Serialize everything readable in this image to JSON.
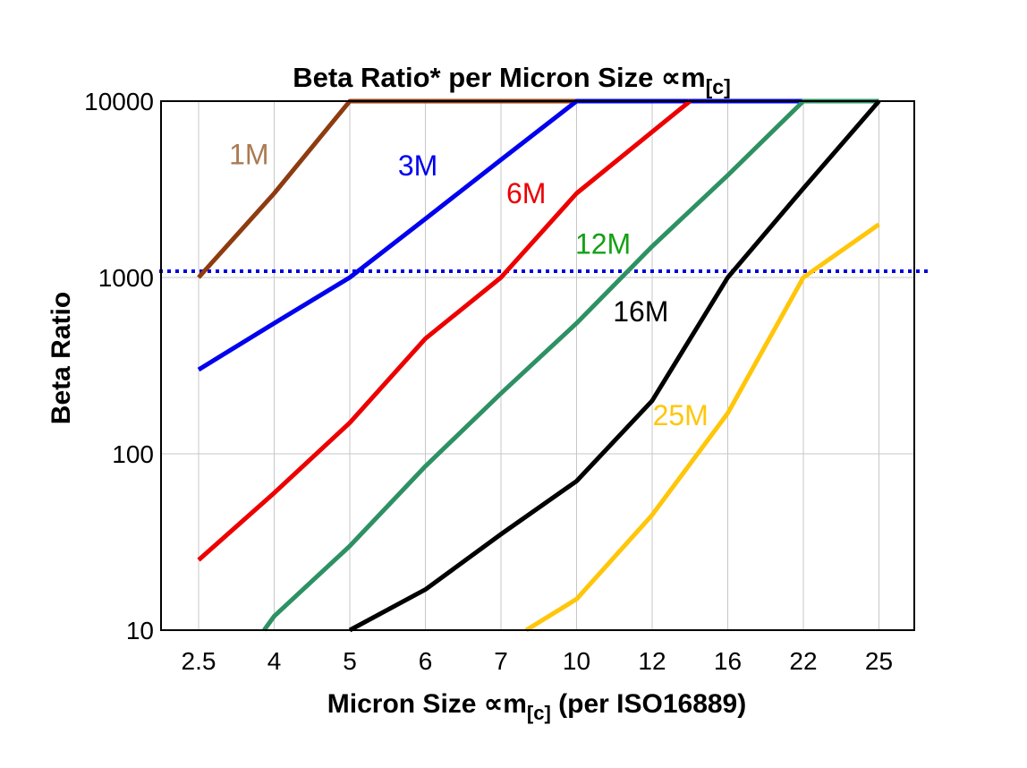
{
  "chart_data": {
    "type": "line",
    "title": "Beta Ratio* per Micron Size ∝m[c]",
    "title_parts": {
      "main": "Beta Ratio* per Micron Size ∝m",
      "sub": "[c]"
    },
    "xlabel": "Micron Size ∝m[c] (per ISO16889)",
    "xlabel_parts": {
      "pre": "Micron Size ∝m",
      "sub": "[c]",
      "post": " (per ISO16889)"
    },
    "ylabel": "Beta Ratio",
    "x_categories": [
      2.5,
      4,
      5,
      6,
      7,
      10,
      12,
      16,
      22,
      25
    ],
    "y_scale": "log",
    "y_ticks": [
      10,
      100,
      1000,
      10000
    ],
    "ylim": [
      10,
      10000
    ],
    "grid": true,
    "legend_position": "inline-labels",
    "reference_line": {
      "value": 1000,
      "color": "#0000DD",
      "style": "dotted"
    },
    "colors": {
      "grid": "#C7C7C7",
      "border": "#000000",
      "background": "#FFFFFF"
    },
    "series": [
      {
        "name": "1M",
        "color": "#8E3B10",
        "label_color": "#AA7A52",
        "label_at": {
          "x": 3.5,
          "y": 5000
        },
        "points": [
          [
            2.5,
            1000
          ],
          [
            4,
            3000
          ],
          [
            5,
            10000
          ],
          [
            10,
            10000
          ]
        ]
      },
      {
        "name": "3M",
        "color": "#0000EE",
        "label_color": "#0000EE",
        "label_at": {
          "x": 5.9,
          "y": 4300
        },
        "points": [
          [
            2.5,
            300
          ],
          [
            4,
            550
          ],
          [
            5,
            1000
          ],
          [
            6,
            2150
          ],
          [
            7,
            4650
          ],
          [
            10,
            10000
          ],
          [
            22,
            10000
          ]
        ]
      },
      {
        "name": "6M",
        "color": "#EC0000",
        "label_color": "#EC0000",
        "label_at": {
          "x": 8.0,
          "y": 3000
        },
        "points": [
          [
            2.5,
            25
          ],
          [
            4,
            60
          ],
          [
            5,
            150
          ],
          [
            6,
            450
          ],
          [
            7,
            1000
          ],
          [
            10,
            3000
          ],
          [
            12,
            6700
          ],
          [
            14,
            10000
          ]
        ]
      },
      {
        "name": "12M",
        "color": "#2E9163",
        "label_color": "#14A014",
        "label_at": {
          "x": 10.7,
          "y": 1550
        },
        "points": [
          [
            3.8,
            10
          ],
          [
            4,
            12
          ],
          [
            5,
            30
          ],
          [
            6,
            85
          ],
          [
            7,
            220
          ],
          [
            10,
            550
          ],
          [
            12,
            1500
          ],
          [
            16,
            3800
          ],
          [
            22,
            10000
          ],
          [
            25,
            10000
          ]
        ]
      },
      {
        "name": "16M",
        "color": "#000000",
        "label_color": "#000000",
        "label_at": {
          "x": 11.7,
          "y": 640
        },
        "points": [
          [
            5,
            10
          ],
          [
            6,
            17
          ],
          [
            7,
            35
          ],
          [
            10,
            70
          ],
          [
            12,
            200
          ],
          [
            16,
            1000
          ],
          [
            22,
            3200
          ],
          [
            25,
            10000
          ]
        ]
      },
      {
        "name": "25M",
        "color": "#FFC60A",
        "label_color": "#FFC60A",
        "label_at": {
          "x": 13.5,
          "y": 165
        },
        "points": [
          [
            8,
            10
          ],
          [
            10,
            15
          ],
          [
            12,
            45
          ],
          [
            16,
            170
          ],
          [
            22,
            1000
          ],
          [
            25,
            2000
          ]
        ]
      }
    ]
  }
}
